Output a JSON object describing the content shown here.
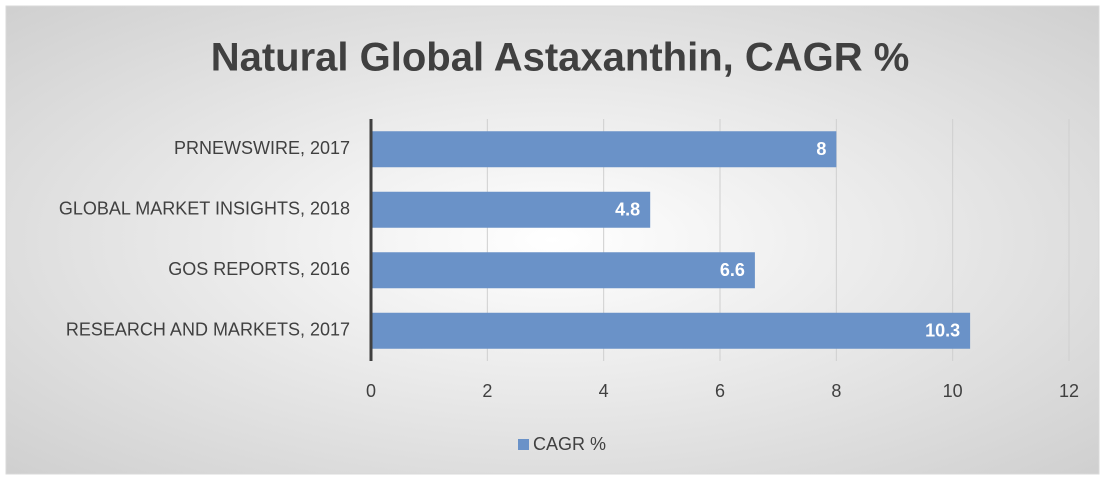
{
  "chart_data": {
    "type": "bar",
    "orientation": "horizontal",
    "title": "Natural Global Astaxanthin, CAGR %",
    "categories": [
      "PRNEWSWIRE, 2017",
      "GLOBAL MARKET INSIGHTS, 2018",
      "GOS REPORTS, 2016",
      "RESEARCH AND MARKETS, 2017"
    ],
    "series": [
      {
        "name": "CAGR %",
        "color": "#6a92c8",
        "values": [
          8,
          4.8,
          6.6,
          10.3
        ]
      }
    ],
    "xlim": [
      0,
      12
    ],
    "xticks": [
      0,
      2,
      4,
      6,
      8,
      10,
      12
    ],
    "grid": true,
    "legend": "bottom",
    "data_labels": true
  }
}
